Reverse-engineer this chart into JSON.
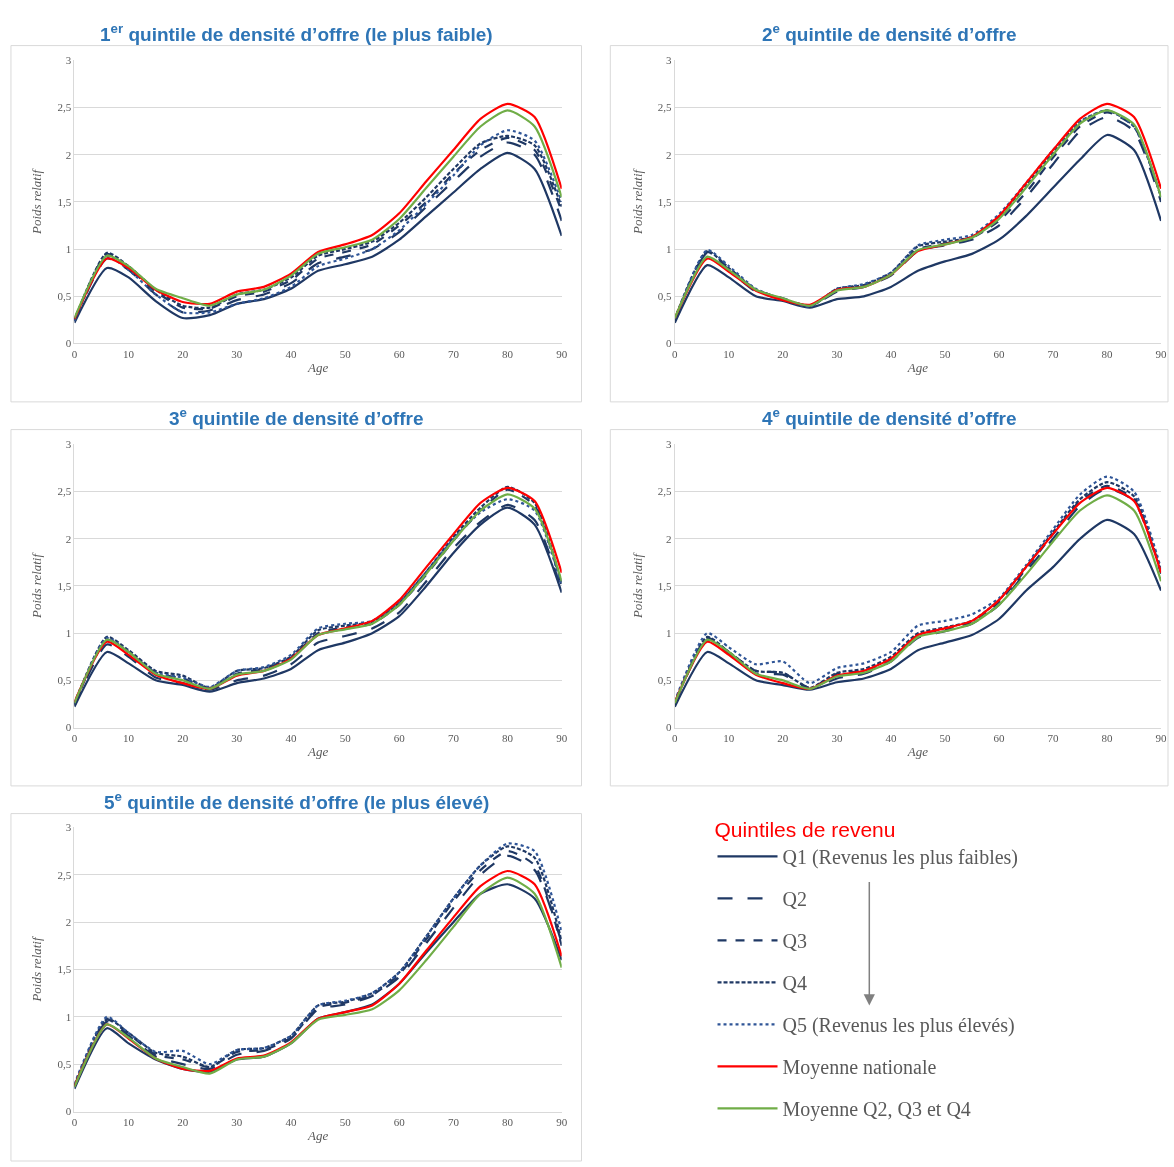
{
  "chart_data": [
    {
      "type": "line",
      "title": "1$^{er}$ quintile de densité d’offre (le plus faible)",
      "xlabel": "Age",
      "ylabel": "Poids relatif",
      "legend": "bottom right",
      "legend_title": "Quintiles de revenu",
      "xlim": [
        0,
        90
      ],
      "ylim": [
        0,
        3
      ],
      "xticks": [
        0,
        10,
        20,
        30,
        40,
        50,
        60,
        70,
        80,
        90
      ],
      "yticks": [
        0,
        {
          "value": 0.5,
          "label": "0,5"
        },
        1,
        {
          "value": 1.5,
          "label": "1,5"
        },
        2,
        {
          "value": 2.5,
          "label": "2,5"
        },
        3
      ],
      "grid": "y",
      "x": [
        0,
        6,
        10,
        15,
        20,
        25,
        30,
        35,
        40,
        45,
        50,
        55,
        60,
        65,
        70,
        75,
        80,
        85,
        90
      ],
      "series": [
        {
          "name": "Q1 (Revenus les plus faibles)",
          "color": "#1f3864",
          "line_style": "solid",
          "values": [
            0.22,
            0.8,
            0.7,
            0.45,
            0.27,
            0.3,
            0.42,
            0.47,
            0.58,
            0.77,
            0.84,
            0.92,
            1.1,
            1.35,
            1.6,
            1.85,
            2.02,
            1.85,
            1.14
          ]
        },
        {
          "name": "Q2",
          "color": "#1f3864",
          "line_style": "longdash",
          "values": [
            0.24,
            0.9,
            0.78,
            0.52,
            0.33,
            0.35,
            0.46,
            0.52,
            0.64,
            0.85,
            0.92,
            1.0,
            1.18,
            1.45,
            1.72,
            1.98,
            2.13,
            2.0,
            1.3
          ]
        },
        {
          "name": "Q3",
          "color": "#1f3864",
          "line_style": "dashed",
          "values": [
            0.24,
            0.95,
            0.8,
            0.55,
            0.38,
            0.37,
            0.5,
            0.55,
            0.67,
            0.9,
            0.97,
            1.05,
            1.25,
            1.5,
            1.8,
            2.05,
            2.18,
            2.05,
            1.4
          ]
        },
        {
          "name": "Q4",
          "color": "#1f3864",
          "line_style": "shortdash",
          "values": [
            0.25,
            0.96,
            0.82,
            0.57,
            0.4,
            0.38,
            0.52,
            0.57,
            0.7,
            0.93,
            1.0,
            1.08,
            1.28,
            1.55,
            1.85,
            2.12,
            2.2,
            2.1,
            1.45
          ]
        },
        {
          "name": "Q5 (Revenus les plus élevés)",
          "color": "#2f5597",
          "line_style": "dotted",
          "values": [
            0.24,
            0.92,
            0.78,
            0.52,
            0.33,
            0.33,
            0.42,
            0.48,
            0.6,
            0.82,
            0.9,
            1.0,
            1.2,
            1.48,
            1.78,
            2.1,
            2.26,
            2.15,
            1.5
          ]
        },
        {
          "name": "Moyenne nationale",
          "color": "#ff0000",
          "line_style": "solid",
          "values": [
            0.26,
            0.9,
            0.8,
            0.57,
            0.44,
            0.42,
            0.55,
            0.6,
            0.74,
            0.97,
            1.05,
            1.15,
            1.38,
            1.72,
            2.05,
            2.38,
            2.54,
            2.4,
            1.64
          ]
        },
        {
          "name": "Moyenne Q2, Q3 et Q4",
          "color": "#70ad47",
          "line_style": "solid",
          "values": [
            0.27,
            0.93,
            0.82,
            0.58,
            0.48,
            0.4,
            0.52,
            0.57,
            0.72,
            0.95,
            1.02,
            1.1,
            1.32,
            1.65,
            1.98,
            2.3,
            2.47,
            2.3,
            1.55
          ]
        }
      ]
    },
    {
      "type": "line",
      "title": "2$^{e}$ quintile de densité d’offre",
      "xlabel": "Age",
      "ylabel": "Poids relatif",
      "xlim": [
        0,
        90
      ],
      "ylim": [
        0,
        3
      ],
      "xticks": [
        0,
        10,
        20,
        30,
        40,
        50,
        60,
        70,
        80,
        90
      ],
      "yticks": [
        0,
        {
          "value": 0.5,
          "label": "0,5"
        },
        1,
        {
          "value": 1.5,
          "label": "1,5"
        },
        2,
        {
          "value": 2.5,
          "label": "2,5"
        },
        3
      ],
      "grid": "y",
      "x": [
        0,
        6,
        10,
        15,
        20,
        25,
        30,
        35,
        40,
        45,
        50,
        55,
        60,
        65,
        70,
        75,
        80,
        85,
        90
      ],
      "series": [
        {
          "color": "#1f3864",
          "line_style": "solid",
          "values": [
            0.22,
            0.83,
            0.7,
            0.5,
            0.45,
            0.38,
            0.47,
            0.5,
            0.6,
            0.77,
            0.87,
            0.95,
            1.1,
            1.35,
            1.65,
            1.95,
            2.21,
            2.05,
            1.3
          ]
        },
        {
          "color": "#1f3864",
          "line_style": "longdash",
          "values": [
            0.25,
            0.96,
            0.78,
            0.55,
            0.47,
            0.39,
            0.55,
            0.6,
            0.72,
            0.98,
            1.04,
            1.1,
            1.25,
            1.55,
            1.9,
            2.25,
            2.4,
            2.25,
            1.5
          ]
        },
        {
          "color": "#1f3864",
          "line_style": "dashed",
          "values": [
            0.25,
            0.97,
            0.8,
            0.57,
            0.48,
            0.4,
            0.57,
            0.62,
            0.74,
            1.0,
            1.06,
            1.12,
            1.3,
            1.6,
            1.97,
            2.3,
            2.45,
            2.3,
            1.55
          ]
        },
        {
          "color": "#1f3864",
          "line_style": "shortdash",
          "values": [
            0.26,
            0.98,
            0.8,
            0.57,
            0.47,
            0.39,
            0.58,
            0.62,
            0.75,
            1.03,
            1.08,
            1.13,
            1.35,
            1.68,
            2.02,
            2.35,
            2.47,
            2.3,
            1.55
          ]
        },
        {
          "color": "#2f5597",
          "line_style": "dotted",
          "values": [
            0.26,
            0.99,
            0.82,
            0.58,
            0.47,
            0.39,
            0.58,
            0.63,
            0.75,
            1.04,
            1.1,
            1.15,
            1.37,
            1.7,
            2.05,
            2.35,
            2.47,
            2.3,
            1.55
          ]
        },
        {
          "color": "#ff0000",
          "line_style": "solid",
          "values": [
            0.27,
            0.9,
            0.76,
            0.56,
            0.46,
            0.41,
            0.57,
            0.6,
            0.73,
            0.98,
            1.05,
            1.13,
            1.35,
            1.7,
            2.05,
            2.38,
            2.54,
            2.4,
            1.64
          ]
        },
        {
          "color": "#70ad47",
          "line_style": "solid",
          "values": [
            0.27,
            0.92,
            0.78,
            0.57,
            0.48,
            0.4,
            0.56,
            0.6,
            0.73,
            0.99,
            1.05,
            1.12,
            1.32,
            1.65,
            2.0,
            2.33,
            2.47,
            2.32,
            1.55
          ]
        }
      ]
    },
    {
      "type": "line",
      "title": "3$^{e}$ quintile de densité d’offre",
      "xlabel": "Age",
      "ylabel": "Poids relatif",
      "xlim": [
        0,
        90
      ],
      "ylim": [
        0,
        3
      ],
      "xticks": [
        0,
        10,
        20,
        30,
        40,
        50,
        60,
        70,
        80,
        90
      ],
      "yticks": [
        0,
        {
          "value": 0.5,
          "label": "0,5"
        },
        1,
        {
          "value": 1.5,
          "label": "1,5"
        },
        2,
        {
          "value": 2.5,
          "label": "2,5"
        },
        3
      ],
      "grid": "y",
      "x": [
        0,
        6,
        10,
        15,
        20,
        25,
        30,
        35,
        40,
        45,
        50,
        55,
        60,
        65,
        70,
        75,
        80,
        85,
        90
      ],
      "series": [
        {
          "color": "#1f3864",
          "line_style": "solid",
          "values": [
            0.22,
            0.8,
            0.68,
            0.5,
            0.45,
            0.38,
            0.47,
            0.52,
            0.62,
            0.82,
            0.9,
            1.0,
            1.18,
            1.5,
            1.85,
            2.15,
            2.33,
            2.15,
            1.43
          ]
        },
        {
          "color": "#1f3864",
          "line_style": "longdash",
          "values": [
            0.23,
            0.88,
            0.75,
            0.53,
            0.47,
            0.4,
            0.5,
            0.55,
            0.67,
            0.9,
            0.97,
            1.05,
            1.22,
            1.55,
            1.9,
            2.18,
            2.36,
            2.2,
            1.45
          ]
        },
        {
          "color": "#1f3864",
          "line_style": "dashed",
          "values": [
            0.24,
            0.93,
            0.8,
            0.58,
            0.52,
            0.42,
            0.57,
            0.62,
            0.74,
            1.0,
            1.06,
            1.1,
            1.3,
            1.62,
            1.98,
            2.3,
            2.52,
            2.35,
            1.5
          ]
        },
        {
          "color": "#1f3864",
          "line_style": "shortdash",
          "values": [
            0.25,
            0.96,
            0.82,
            0.6,
            0.55,
            0.42,
            0.6,
            0.63,
            0.75,
            1.03,
            1.08,
            1.12,
            1.32,
            1.65,
            2.02,
            2.33,
            2.55,
            2.38,
            1.52
          ]
        },
        {
          "color": "#2f5597",
          "line_style": "dotted",
          "values": [
            0.26,
            0.95,
            0.8,
            0.58,
            0.53,
            0.43,
            0.6,
            0.64,
            0.77,
            1.05,
            1.1,
            1.13,
            1.33,
            1.65,
            2.0,
            2.28,
            2.42,
            2.3,
            1.5
          ]
        },
        {
          "color": "#ff0000",
          "line_style": "solid",
          "values": [
            0.27,
            0.91,
            0.77,
            0.56,
            0.47,
            0.41,
            0.55,
            0.6,
            0.73,
            0.98,
            1.05,
            1.13,
            1.35,
            1.7,
            2.05,
            2.38,
            2.54,
            2.4,
            1.64
          ]
        },
        {
          "color": "#70ad47",
          "line_style": "solid",
          "values": [
            0.26,
            0.93,
            0.8,
            0.57,
            0.5,
            0.41,
            0.56,
            0.6,
            0.72,
            0.98,
            1.04,
            1.1,
            1.3,
            1.63,
            1.98,
            2.3,
            2.47,
            2.32,
            1.55
          ]
        }
      ]
    },
    {
      "type": "line",
      "title": "4$^{e}$ quintile de densité d’offre",
      "xlabel": "Age",
      "ylabel": "Poids relatif",
      "xlim": [
        0,
        90
      ],
      "ylim": [
        0,
        3
      ],
      "xticks": [
        0,
        10,
        20,
        30,
        40,
        50,
        60,
        70,
        80,
        90
      ],
      "yticks": [
        0,
        {
          "value": 0.5,
          "label": "0,5"
        },
        1,
        {
          "value": 1.5,
          "label": "1,5"
        },
        2,
        {
          "value": 2.5,
          "label": "2,5"
        },
        3
      ],
      "grid": "y",
      "x": [
        0,
        6,
        10,
        15,
        20,
        25,
        30,
        35,
        40,
        45,
        50,
        55,
        60,
        65,
        70,
        75,
        80,
        85,
        90
      ],
      "series": [
        {
          "color": "#1f3864",
          "line_style": "solid",
          "values": [
            0.22,
            0.8,
            0.68,
            0.5,
            0.45,
            0.4,
            0.48,
            0.52,
            0.62,
            0.82,
            0.9,
            0.98,
            1.15,
            1.45,
            1.7,
            2.0,
            2.2,
            2.05,
            1.45
          ]
        },
        {
          "color": "#1f3864",
          "line_style": "longdash",
          "values": [
            0.25,
            0.93,
            0.78,
            0.57,
            0.56,
            0.41,
            0.52,
            0.57,
            0.7,
            0.95,
            1.02,
            1.1,
            1.3,
            1.65,
            2.0,
            2.35,
            2.53,
            2.4,
            1.63
          ]
        },
        {
          "color": "#1f3864",
          "line_style": "dashed",
          "values": [
            0.26,
            0.95,
            0.8,
            0.6,
            0.58,
            0.42,
            0.57,
            0.6,
            0.72,
            0.98,
            1.04,
            1.12,
            1.33,
            1.68,
            2.05,
            2.4,
            2.56,
            2.42,
            1.65
          ]
        },
        {
          "color": "#1f3864",
          "line_style": "shortdash",
          "values": [
            0.27,
            0.96,
            0.8,
            0.6,
            0.58,
            0.42,
            0.58,
            0.62,
            0.75,
            1.0,
            1.06,
            1.13,
            1.35,
            1.7,
            2.07,
            2.42,
            2.6,
            2.45,
            1.65
          ]
        },
        {
          "color": "#2f5597",
          "line_style": "dotted",
          "values": [
            0.28,
            1.0,
            0.85,
            0.67,
            0.7,
            0.47,
            0.63,
            0.68,
            0.8,
            1.08,
            1.13,
            1.2,
            1.37,
            1.72,
            2.1,
            2.47,
            2.66,
            2.5,
            1.68
          ]
        },
        {
          "color": "#ff0000",
          "line_style": "solid",
          "values": [
            0.27,
            0.91,
            0.77,
            0.56,
            0.47,
            0.41,
            0.55,
            0.6,
            0.73,
            0.98,
            1.05,
            1.13,
            1.35,
            1.7,
            2.05,
            2.38,
            2.54,
            2.4,
            1.64
          ]
        },
        {
          "color": "#70ad47",
          "line_style": "solid",
          "values": [
            0.26,
            0.93,
            0.8,
            0.57,
            0.5,
            0.41,
            0.54,
            0.58,
            0.7,
            0.96,
            1.02,
            1.1,
            1.3,
            1.62,
            1.97,
            2.3,
            2.46,
            2.3,
            1.55
          ]
        }
      ]
    },
    {
      "type": "line",
      "title": "5$^{e}$ quintile de densité d’offre (le plus élevé)",
      "xlabel": "Age",
      "ylabel": "Poids relatif",
      "xlim": [
        0,
        90
      ],
      "ylim": [
        0,
        3
      ],
      "xticks": [
        0,
        10,
        20,
        30,
        40,
        50,
        60,
        70,
        80,
        90
      ],
      "yticks": [
        0,
        {
          "value": 0.5,
          "label": "0,5"
        },
        1,
        {
          "value": 1.5,
          "label": "1,5"
        },
        2,
        {
          "value": 2.5,
          "label": "2,5"
        },
        3
      ],
      "grid": "y",
      "x": [
        0,
        6,
        10,
        15,
        20,
        25,
        30,
        35,
        40,
        45,
        50,
        55,
        60,
        65,
        70,
        75,
        80,
        85,
        90
      ],
      "series": [
        {
          "color": "#1f3864",
          "line_style": "solid",
          "values": [
            0.24,
            0.88,
            0.72,
            0.55,
            0.45,
            0.42,
            0.55,
            0.58,
            0.72,
            0.98,
            1.05,
            1.13,
            1.35,
            1.68,
            2.0,
            2.3,
            2.4,
            2.25,
            1.6
          ]
        },
        {
          "color": "#1f3864",
          "line_style": "longdash",
          "values": [
            0.26,
            0.95,
            0.8,
            0.58,
            0.5,
            0.45,
            0.6,
            0.64,
            0.77,
            1.08,
            1.13,
            1.22,
            1.42,
            1.78,
            2.15,
            2.5,
            2.7,
            2.55,
            1.78
          ]
        },
        {
          "color": "#1f3864",
          "line_style": "dashed",
          "values": [
            0.27,
            0.97,
            0.82,
            0.6,
            0.55,
            0.47,
            0.63,
            0.65,
            0.78,
            1.1,
            1.15,
            1.23,
            1.45,
            1.82,
            2.22,
            2.55,
            2.75,
            2.6,
            1.75
          ]
        },
        {
          "color": "#1f3864",
          "line_style": "shortdash",
          "values": [
            0.28,
            0.98,
            0.83,
            0.62,
            0.58,
            0.47,
            0.65,
            0.67,
            0.8,
            1.12,
            1.16,
            1.25,
            1.47,
            1.85,
            2.25,
            2.6,
            2.8,
            2.68,
            1.8
          ]
        },
        {
          "color": "#2f5597",
          "line_style": "dotted",
          "values": [
            0.29,
            1.0,
            0.83,
            0.63,
            0.64,
            0.5,
            0.65,
            0.67,
            0.8,
            1.12,
            1.17,
            1.25,
            1.47,
            1.85,
            2.25,
            2.6,
            2.83,
            2.75,
            1.9
          ]
        },
        {
          "color": "#ff0000",
          "line_style": "solid",
          "values": [
            0.27,
            0.92,
            0.77,
            0.56,
            0.45,
            0.43,
            0.56,
            0.59,
            0.73,
            0.98,
            1.05,
            1.12,
            1.35,
            1.7,
            2.05,
            2.38,
            2.54,
            2.4,
            1.64
          ]
        },
        {
          "color": "#70ad47",
          "line_style": "solid",
          "values": [
            0.26,
            0.92,
            0.78,
            0.56,
            0.47,
            0.4,
            0.55,
            0.58,
            0.72,
            0.97,
            1.02,
            1.08,
            1.28,
            1.6,
            1.95,
            2.3,
            2.47,
            2.3,
            1.52
          ]
        }
      ]
    }
  ]
}
